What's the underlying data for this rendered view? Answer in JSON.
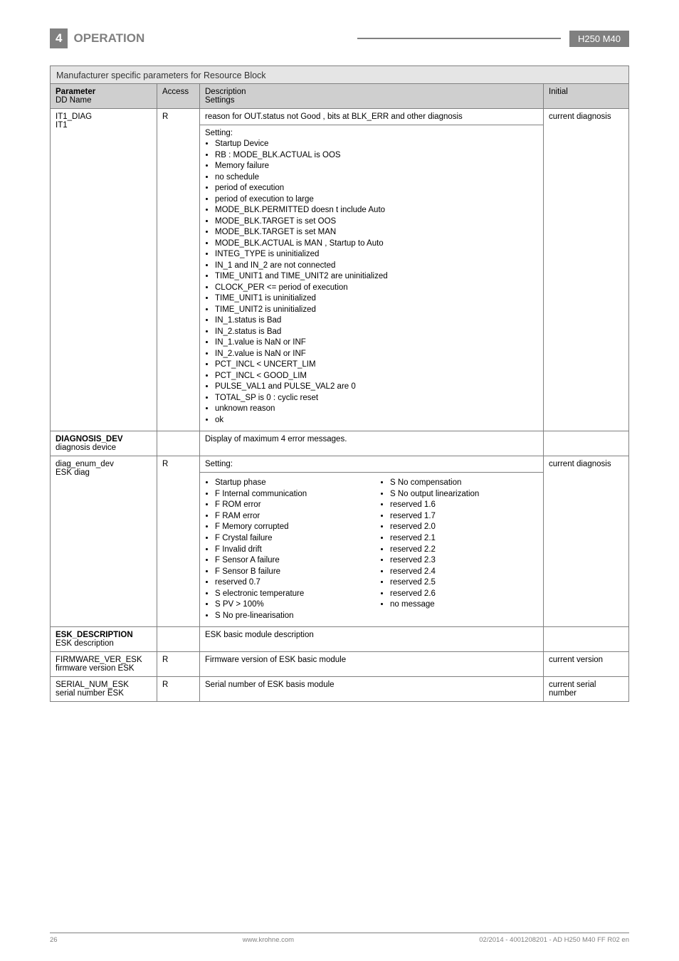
{
  "header": {
    "section_num": "4",
    "section_title": "OPERATION",
    "model": "H250 M40"
  },
  "table_title": "Manufacturer specific parameters for Resource Block",
  "columns": {
    "param": "Parameter",
    "ddname": "DD Name",
    "access": "Access",
    "desc": "Description",
    "settings": "Settings",
    "initial": "Initial"
  },
  "row_it1": {
    "param": "IT1_DIAG",
    "dd": "IT1",
    "access": "R",
    "desc_top": "reason for OUT.status not Good , bits at BLK_ERR and other diagnosis",
    "setting_label": "Setting:",
    "bullets": [
      "Startup Device",
      "RB : MODE_BLK.ACTUAL is OOS",
      "Memory failure",
      "no schedule",
      "period of execution",
      "period of execution to large",
      "MODE_BLK.PERMITTED doesn t include Auto",
      "MODE_BLK.TARGET is set OOS",
      "MODE_BLK.TARGET is set MAN",
      "MODE_BLK.ACTUAL is MAN , Startup to Auto",
      "INTEG_TYPE is uninitialized",
      "IN_1 and IN_2 are not connected",
      "TIME_UNIT1 and TIME_UNIT2 are uninitialized",
      "CLOCK_PER <= period of execution",
      "TIME_UNIT1 is uninitialized",
      "TIME_UNIT2 is uninitialized",
      "IN_1.status is Bad",
      "IN_2.status is Bad",
      "IN_1.value is NaN or INF",
      "IN_2.value is NaN or INF",
      "PCT_INCL < UNCERT_LIM",
      "PCT_INCL < GOOD_LIM",
      "PULSE_VAL1 and PULSE_VAL2 are 0",
      "TOTAL_SP is 0 : cyclic reset",
      "unknown reason",
      "ok"
    ],
    "initial": "current diagnosis"
  },
  "row_diag_dev": {
    "param": "DIAGNOSIS_DEV",
    "dd": "diagnosis device",
    "desc": "Display of maximum 4 error messages."
  },
  "row_diag_enum": {
    "param": "diag_enum_dev",
    "dd": "ESK diag",
    "access": "R",
    "setting_label": "Setting:",
    "left": [
      "Startup phase",
      "F Internal communication",
      "F ROM error",
      "F RAM error",
      "F Memory corrupted",
      "F Crystal failure",
      "F Invalid drift",
      "F Sensor A failure",
      "F Sensor B failure",
      "reserved 0.7",
      "S electronic temperature",
      "S PV > 100%",
      "S No pre-linearisation"
    ],
    "right": [
      "S No compensation",
      "S No output linearization",
      "reserved 1.6",
      "reserved 1.7",
      "reserved 2.0",
      "reserved 2.1",
      "reserved 2.2",
      "reserved 2.3",
      "reserved 2.4",
      "reserved 2.5",
      "reserved 2.6",
      "no message"
    ],
    "initial": "current diagnosis"
  },
  "row_esk_desc": {
    "param": "ESK_DESCRIPTION",
    "dd": "ESK description",
    "desc": "ESK basic module description"
  },
  "row_fw": {
    "param": "FIRMWARE_VER_ESK",
    "dd": "firmware version ESK",
    "access": "R",
    "desc": "Firmware version of ESK basic module",
    "initial": "current version"
  },
  "row_sn": {
    "param": "SERIAL_NUM_ESK",
    "dd": "serial number ESK",
    "access": "R",
    "desc": "Serial number of ESK basis module",
    "initial": "current serial number"
  },
  "footer": {
    "page": "26",
    "site": "www.krohne.com",
    "doc": "02/2014 - 4001208201 - AD H250 M40 FF R02 en"
  }
}
